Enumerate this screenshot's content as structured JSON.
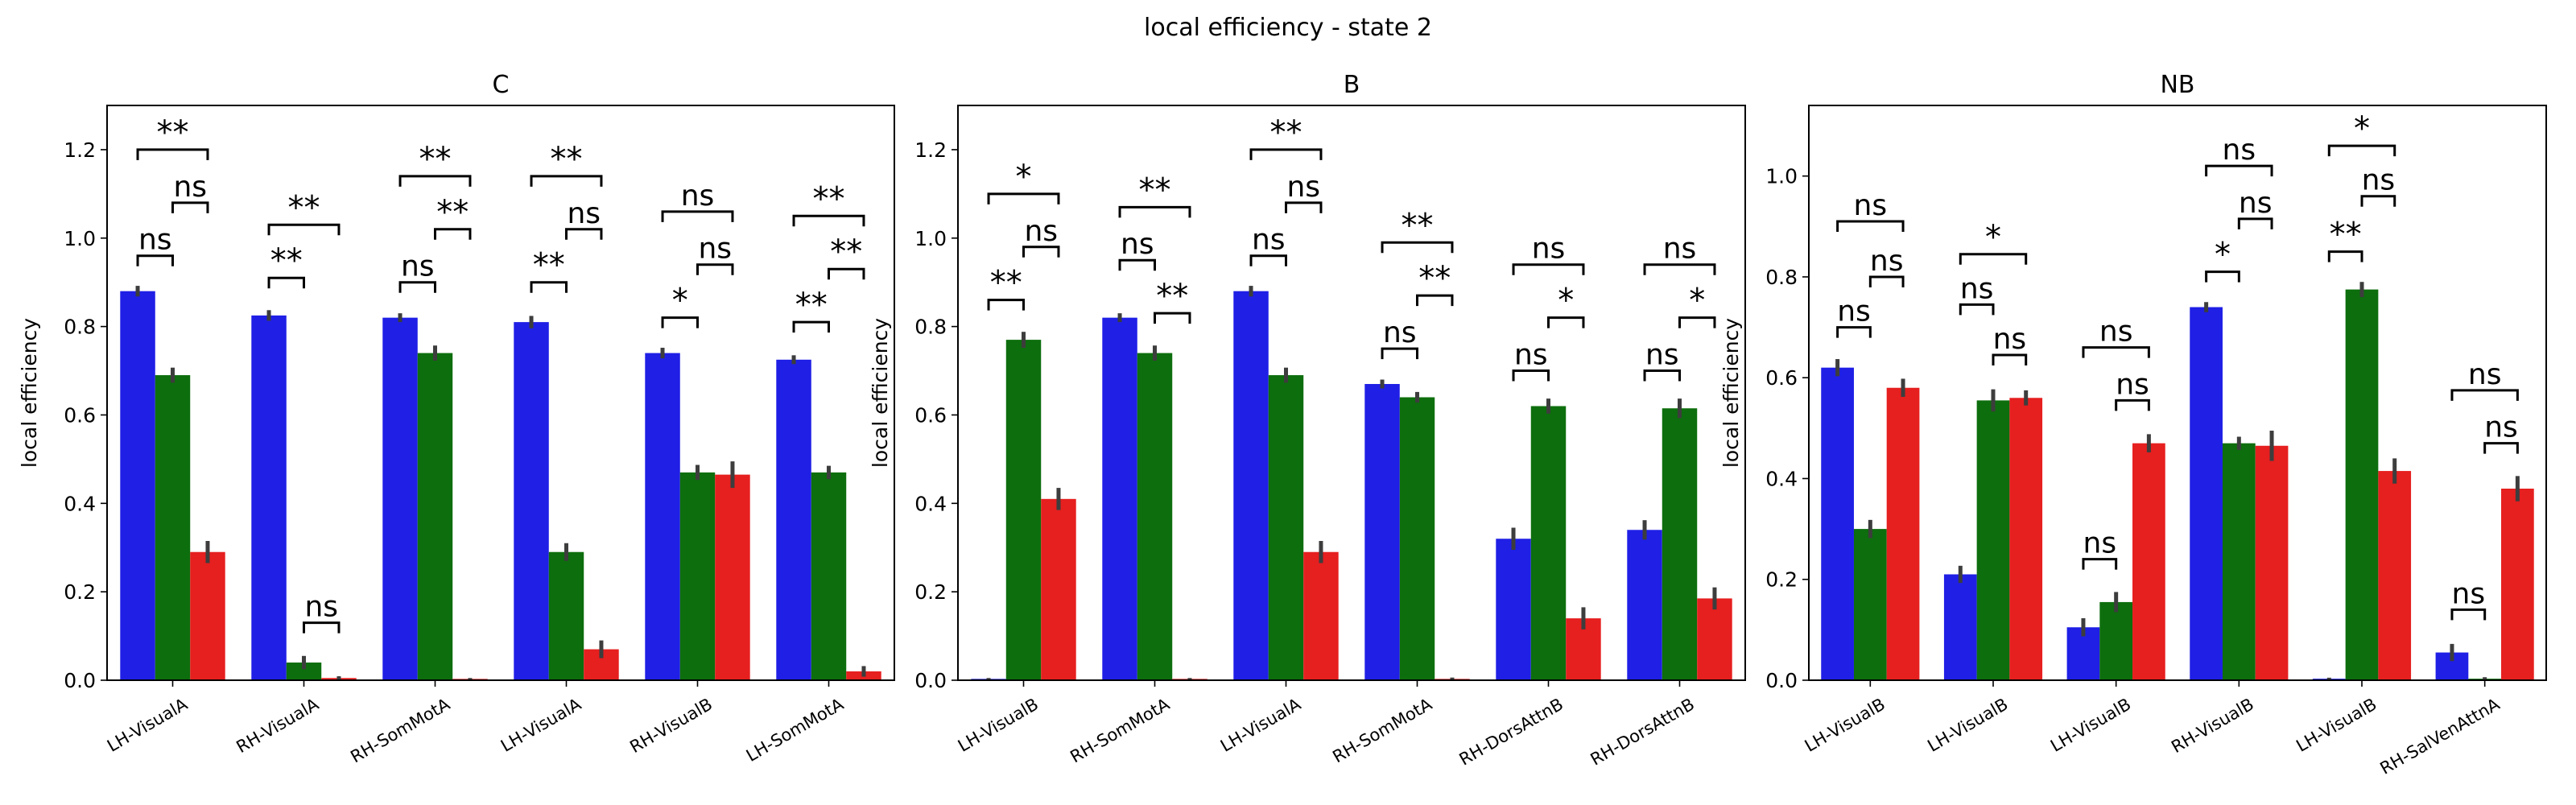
{
  "figure": {
    "suptitle": "local efficiency - state 2"
  },
  "colors": {
    "blue": "#1f1fe6",
    "green": "#0d6e0d",
    "red": "#e61f1f",
    "errbar": "#3d3d3d"
  },
  "chart_data": [
    {
      "type": "bar",
      "title": "C",
      "xlabel": "",
      "ylabel": "local efficiency",
      "ylim": [
        0,
        1.3
      ],
      "yticks": [
        "0.0",
        "0.2",
        "0.4",
        "0.6",
        "0.8",
        "1.0",
        "1.2"
      ],
      "grid": false,
      "categories": [
        "LH-VisualA",
        "RH-VisualA",
        "RH-SomMotA",
        "LH-VisualA",
        "RH-VisualB",
        "LH-SomMotA"
      ],
      "series": [
        {
          "color": "blue",
          "values": [
            0.88,
            0.825,
            0.82,
            0.81,
            0.74,
            0.725
          ]
        },
        {
          "color": "green",
          "values": [
            0.69,
            0.04,
            0.74,
            0.29,
            0.47,
            0.47
          ]
        },
        {
          "color": "red",
          "values": [
            0.29,
            0.005,
            0.003,
            0.07,
            0.465,
            0.02
          ]
        }
      ],
      "errors": [
        [
          0.012,
          0.012,
          0.01,
          0.014,
          0.012,
          0.01
        ],
        [
          0.017,
          0.015,
          0.017,
          0.02,
          0.017,
          0.015
        ],
        [
          0.025,
          0.004,
          0.002,
          0.02,
          0.03,
          0.012
        ]
      ],
      "significance": [
        [
          {
            "label": "ns",
            "top": 0.96
          },
          {
            "label": "ns",
            "top": 1.08
          },
          {
            "label": "**",
            "top": 1.2
          }
        ],
        [
          {
            "label": "**",
            "top": 0.91
          },
          {
            "label": "ns",
            "top": 0.13
          },
          {
            "label": "**",
            "top": 1.03
          }
        ],
        [
          {
            "label": "ns",
            "top": 0.9
          },
          {
            "label": "**",
            "top": 1.02
          },
          {
            "label": "**",
            "top": 1.14
          }
        ],
        [
          {
            "label": "**",
            "top": 0.9
          },
          {
            "label": "ns",
            "top": 1.02
          },
          {
            "label": "**",
            "top": 1.14
          }
        ],
        [
          {
            "label": "*",
            "top": 0.82
          },
          {
            "label": "ns",
            "top": 0.94
          },
          {
            "label": "ns",
            "top": 1.06
          }
        ],
        [
          {
            "label": "**",
            "top": 0.81
          },
          {
            "label": "**",
            "top": 0.93
          },
          {
            "label": "**",
            "top": 1.05
          }
        ]
      ]
    },
    {
      "type": "bar",
      "title": "B",
      "xlabel": "",
      "ylabel": "local efficiency",
      "ylim": [
        0,
        1.3
      ],
      "yticks": [
        "0.0",
        "0.2",
        "0.4",
        "0.6",
        "0.8",
        "1.0",
        "1.2"
      ],
      "grid": false,
      "categories": [
        "LH-VisualB",
        "RH-SomMotA",
        "LH-VisualA",
        "RH-SomMotA",
        "RH-DorsAttnB",
        "RH-DorsAttnB"
      ],
      "series": [
        {
          "color": "blue",
          "values": [
            0.003,
            0.82,
            0.88,
            0.67,
            0.32,
            0.34
          ]
        },
        {
          "color": "green",
          "values": [
            0.77,
            0.74,
            0.69,
            0.64,
            0.62,
            0.615
          ]
        },
        {
          "color": "red",
          "values": [
            0.41,
            0.003,
            0.29,
            0.003,
            0.14,
            0.185
          ]
        }
      ],
      "errors": [
        [
          0.002,
          0.01,
          0.012,
          0.01,
          0.025,
          0.022
        ],
        [
          0.018,
          0.017,
          0.017,
          0.012,
          0.017,
          0.022
        ],
        [
          0.025,
          0.002,
          0.025,
          0.003,
          0.025,
          0.025
        ]
      ],
      "significance": [
        [
          {
            "label": "**",
            "top": 0.86
          },
          {
            "label": "ns",
            "top": 0.98
          },
          {
            "label": "*",
            "top": 1.1
          }
        ],
        [
          {
            "label": "ns",
            "top": 0.95
          },
          {
            "label": "**",
            "top": 0.83
          },
          {
            "label": "**",
            "top": 1.07
          }
        ],
        [
          {
            "label": "ns",
            "top": 0.96
          },
          {
            "label": "ns",
            "top": 1.08
          },
          {
            "label": "**",
            "top": 1.2
          }
        ],
        [
          {
            "label": "ns",
            "top": 0.75
          },
          {
            "label": "**",
            "top": 0.87
          },
          {
            "label": "**",
            "top": 0.99
          }
        ],
        [
          {
            "label": "ns",
            "top": 0.7
          },
          {
            "label": "*",
            "top": 0.82
          },
          {
            "label": "ns",
            "top": 0.94
          }
        ],
        [
          {
            "label": "ns",
            "top": 0.7
          },
          {
            "label": "*",
            "top": 0.82
          },
          {
            "label": "ns",
            "top": 0.94
          }
        ]
      ]
    },
    {
      "type": "bar",
      "title": "NB",
      "xlabel": "",
      "ylabel": "local efficiency",
      "ylim": [
        0,
        1.14
      ],
      "yticks": [
        "0.0",
        "0.2",
        "0.4",
        "0.6",
        "0.8",
        "1.0"
      ],
      "grid": false,
      "categories": [
        "LH-VisualB",
        "LH-VisualB",
        "LH-VisualB",
        "RH-VisualB",
        "LH-VisualB",
        "RH-SalVenAttnA"
      ],
      "series": [
        {
          "color": "blue",
          "values": [
            0.62,
            0.21,
            0.105,
            0.74,
            0.003,
            0.055
          ]
        },
        {
          "color": "green",
          "values": [
            0.3,
            0.555,
            0.155,
            0.47,
            0.775,
            0.003
          ]
        },
        {
          "color": "red",
          "values": [
            0.58,
            0.56,
            0.47,
            0.465,
            0.415,
            0.38
          ]
        }
      ],
      "errors": [
        [
          0.017,
          0.017,
          0.018,
          0.01,
          0.002,
          0.017
        ],
        [
          0.018,
          0.022,
          0.02,
          0.013,
          0.015,
          0.003
        ],
        [
          0.018,
          0.015,
          0.018,
          0.03,
          0.025,
          0.025
        ]
      ],
      "significance": [
        [
          {
            "label": "ns",
            "top": 0.7
          },
          {
            "label": "ns",
            "top": 0.8
          },
          {
            "label": "ns",
            "top": 0.91
          }
        ],
        [
          {
            "label": "ns",
            "top": 0.745
          },
          {
            "label": "ns",
            "top": 0.645
          },
          {
            "label": "*",
            "top": 0.845
          }
        ],
        [
          {
            "label": "ns",
            "top": 0.24
          },
          {
            "label": "ns",
            "top": 0.555
          },
          {
            "label": "ns",
            "top": 0.66
          }
        ],
        [
          {
            "label": "*",
            "top": 0.81
          },
          {
            "label": "ns",
            "top": 0.915
          },
          {
            "label": "ns",
            "top": 1.02
          }
        ],
        [
          {
            "label": "**",
            "top": 0.85
          },
          {
            "label": "ns",
            "top": 0.96
          },
          {
            "label": "*",
            "top": 1.06
          }
        ],
        [
          {
            "label": "ns",
            "top": 0.14
          },
          {
            "label": "ns",
            "top": 0.47
          },
          {
            "label": "ns",
            "top": 0.575
          }
        ]
      ]
    }
  ]
}
